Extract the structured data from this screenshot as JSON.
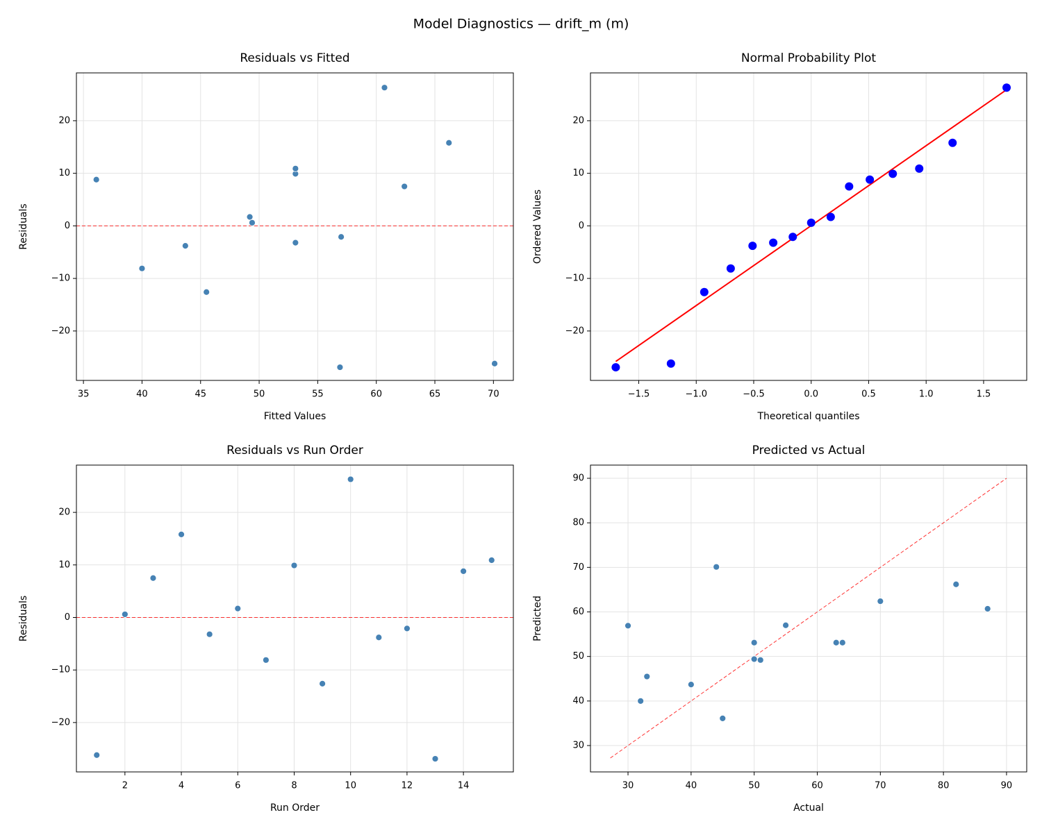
{
  "title": "Model Diagnostics — drift_m (m)",
  "chart_data": [
    {
      "type": "scatter",
      "title": "Residuals vs Fitted",
      "xlabel": "Fitted Values",
      "ylabel": "Residuals",
      "x": [
        70.1,
        49.4,
        62.4,
        66.2,
        53.1,
        49.2,
        40.0,
        53.1,
        45.5,
        60.7,
        43.7,
        57.0,
        56.9,
        36.1,
        53.1
      ],
      "values": [
        -26.2,
        0.6,
        7.5,
        15.8,
        -3.2,
        1.7,
        -8.1,
        9.9,
        -12.6,
        26.3,
        -3.8,
        -2.1,
        -26.9,
        8.8,
        10.9
      ],
      "color": "#4682b4",
      "xlim": [
        34.4,
        71.7
      ],
      "ylim": [
        -29.4,
        29.1
      ],
      "xticks": [
        35,
        40,
        45,
        50,
        55,
        60,
        65,
        70
      ],
      "yticks": [
        {
          "value": -20,
          "label": "−20"
        },
        {
          "value": -10,
          "label": "−10"
        },
        0,
        10,
        20
      ],
      "grid": true,
      "hline": 0,
      "line_color": "#ff0000",
      "line_dashed": true
    },
    {
      "type": "scatter",
      "title": "Normal Probability Plot",
      "xlabel": "Theoretical quantiles",
      "ylabel": "Ordered Values",
      "x": [
        -1.7,
        -1.22,
        -0.93,
        -0.7,
        -0.51,
        -0.33,
        -0.16,
        0.0,
        0.17,
        0.33,
        0.51,
        0.71,
        0.94,
        1.23,
        1.7
      ],
      "values": [
        -26.9,
        -26.2,
        -12.6,
        -8.1,
        -3.8,
        -3.2,
        -2.1,
        0.6,
        1.7,
        7.5,
        8.8,
        9.9,
        10.9,
        15.8,
        26.3
      ],
      "color": "#0000ff",
      "marker_large": true,
      "xlim": [
        -1.92,
        1.875
      ],
      "ylim": [
        -29.4,
        29.1
      ],
      "xticks": [
        {
          "value": -1.5,
          "label": "−1.5"
        },
        {
          "value": -1.0,
          "label": "−1.0"
        },
        {
          "value": -0.5,
          "label": "−0.5"
        },
        {
          "value": 0.0,
          "label": "0.0"
        },
        0.5,
        {
          "value": 1.0,
          "label": "1.0"
        },
        1.5
      ],
      "yticks": [
        {
          "value": -20,
          "label": "−20"
        },
        {
          "value": -10,
          "label": "−10"
        },
        0,
        10,
        20
      ],
      "grid": true,
      "fit_line": {
        "x": [
          -1.7,
          1.7
        ],
        "y": [
          -25.8,
          25.9
        ]
      },
      "line_color": "#ff0000",
      "line_dashed": false
    },
    {
      "type": "scatter",
      "title": "Residuals vs Run Order",
      "xlabel": "Run Order",
      "ylabel": "Residuals",
      "x": [
        1,
        2,
        3,
        4,
        5,
        6,
        7,
        8,
        9,
        10,
        11,
        12,
        13,
        14,
        15
      ],
      "values": [
        -26.2,
        0.6,
        7.5,
        15.8,
        -3.2,
        1.7,
        -8.1,
        9.9,
        -12.6,
        26.3,
        -3.8,
        -2.1,
        -26.9,
        8.8,
        10.9
      ],
      "color": "#4682b4",
      "xlim": [
        0.28,
        15.77
      ],
      "ylim": [
        -29.4,
        29.0
      ],
      "xticks": [
        2,
        4,
        6,
        8,
        10,
        12,
        14
      ],
      "yticks": [
        {
          "value": -20,
          "label": "−20"
        },
        {
          "value": -10,
          "label": "−10"
        },
        0,
        10,
        20
      ],
      "grid": true,
      "hline": 0,
      "line_color": "#ff0000",
      "line_dashed": true
    },
    {
      "type": "scatter",
      "title": "Predicted vs Actual",
      "xlabel": "Actual",
      "ylabel": "Predicted",
      "x": [
        44,
        50,
        70,
        82,
        50,
        51,
        32,
        63,
        33,
        87,
        40,
        55,
        30,
        45,
        64
      ],
      "values": [
        70.1,
        49.4,
        62.4,
        66.2,
        53.1,
        49.2,
        40.0,
        53.1,
        45.5,
        60.7,
        43.7,
        57.0,
        56.9,
        36.1,
        53.1
      ],
      "color": "#4682b4",
      "xlim": [
        24.05,
        93.2
      ],
      "ylim": [
        24.08,
        92.96
      ],
      "xticks": [
        30,
        40,
        50,
        60,
        70,
        80,
        90
      ],
      "yticks": [
        30,
        40,
        50,
        60,
        70,
        80,
        90
      ],
      "grid": true,
      "fit_line": {
        "x": [
          27.2,
          90
        ],
        "y": [
          27.2,
          90
        ]
      },
      "line_color": "#ff0000",
      "line_dashed": true
    }
  ]
}
